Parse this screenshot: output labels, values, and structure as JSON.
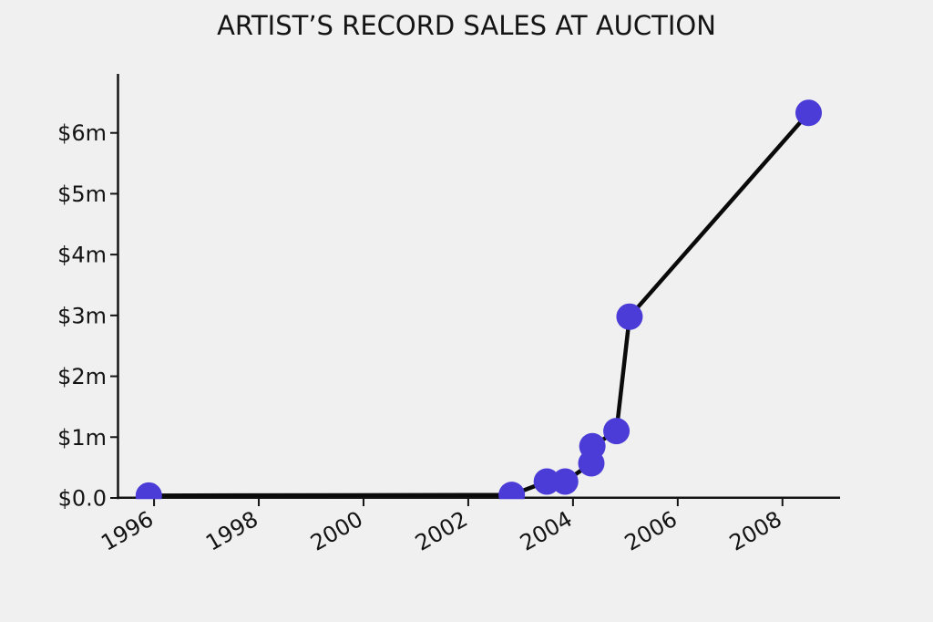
{
  "chart_data": {
    "type": "line",
    "title": "ARTIST’S RECORD SALES AT AUCTION",
    "xlabel": "",
    "ylabel": "",
    "x": [
      1995.9,
      2002.83,
      2003.5,
      2003.85,
      2004.35,
      2004.37,
      2004.83,
      2005.08,
      2008.5
    ],
    "y_millions": [
      0.04,
      0.05,
      0.27,
      0.27,
      0.57,
      0.85,
      1.1,
      2.98,
      6.33
    ],
    "x_ticks": [
      1996,
      1998,
      2000,
      2002,
      2004,
      2006,
      2008
    ],
    "y_tick_values": [
      0,
      1,
      2,
      3,
      4,
      5,
      6
    ],
    "y_tick_labels": [
      "$0.0",
      "$1m",
      "$2m",
      "$3m",
      "$4m",
      "$5m",
      "$6m"
    ],
    "xlim": [
      1995.32,
      2009.1
    ],
    "ylim": [
      0,
      6.97
    ],
    "grid": false,
    "legend": false,
    "colors": {
      "marker": "#4b3cd7",
      "line": "#0a0a0a",
      "axis": "#141414",
      "text": "#141414",
      "background": "#f0f0f0"
    }
  }
}
